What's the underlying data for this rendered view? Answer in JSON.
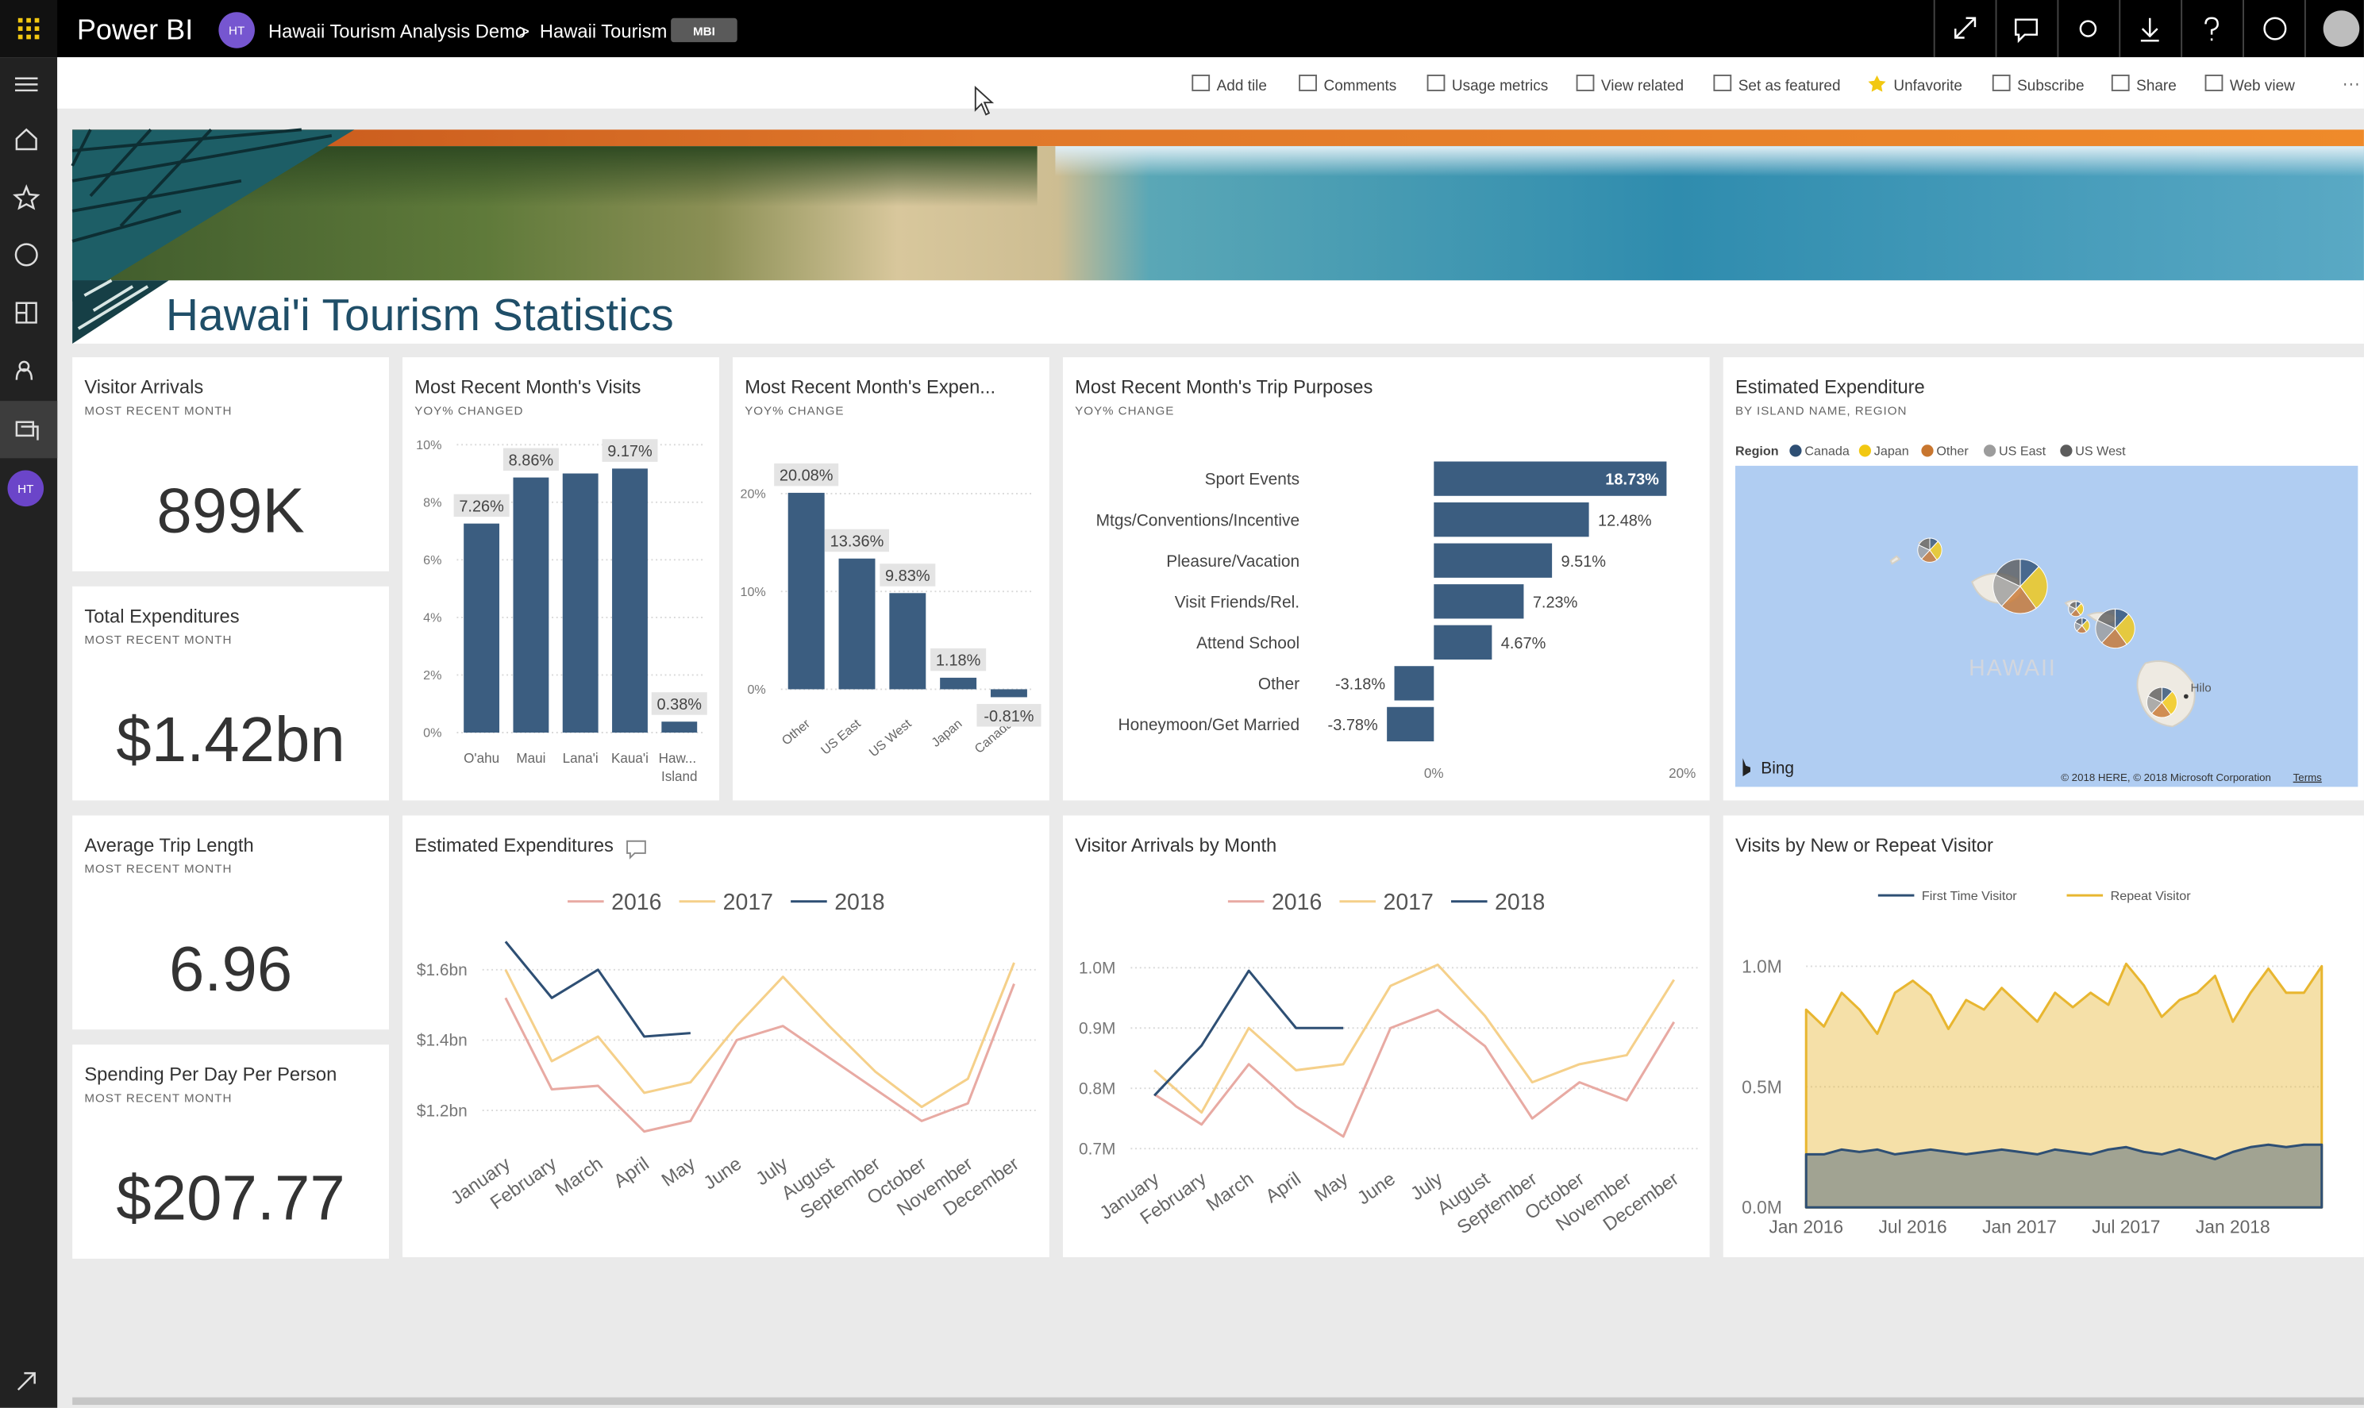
{
  "header": {
    "app": "Power BI",
    "avatar": "HT",
    "workspace": "Hawaii Tourism Analysis Demo",
    "separator": ">",
    "dashboard": "Hawaii Tourism",
    "badge": "MBI"
  },
  "toolbar": [
    "Add tile",
    "Comments",
    "Usage metrics",
    "View related",
    "Set as featured",
    "Unfavorite",
    "Subscribe",
    "Share",
    "Web view"
  ],
  "sidebar": {
    "avatar": "HT"
  },
  "banner": {
    "title": "Hawai'i Tourism Statistics"
  },
  "cards": [
    {
      "title": "Visitor Arrivals",
      "subtitle": "MOST RECENT MONTH",
      "value": "899K"
    },
    {
      "title": "Total Expenditures",
      "subtitle": "MOST RECENT MONTH",
      "value": "$1.42bn"
    },
    {
      "title": "Average Trip Length",
      "subtitle": "MOST RECENT MONTH",
      "value": "6.96"
    },
    {
      "title": "Spending Per Day Per Person",
      "subtitle": "MOST RECENT MONTH",
      "value": "$207.77"
    }
  ],
  "charts": [
    {
      "type": "bar",
      "title": "Most Recent Month's Visits",
      "subtitle": "YOY% CHANGED",
      "categories": [
        "O'ahu",
        "Maui",
        "Lana'i",
        "Kaua'i",
        "Haw... Island"
      ],
      "values": [
        7.26,
        8.86,
        9.0,
        9.17,
        0.38
      ],
      "value_labels": [
        "7.26%",
        "8.86%",
        null,
        "9.17%",
        "0.38%"
      ],
      "color": "#3b5d80",
      "ylim": [
        0,
        10
      ],
      "yticks": [
        {
          "value": 0,
          "label": "0%"
        },
        {
          "value": 2,
          "label": "2%"
        },
        {
          "value": 4,
          "label": "4%"
        },
        {
          "value": 6,
          "label": "6%"
        },
        {
          "value": 8,
          "label": "8%"
        },
        {
          "value": 10,
          "label": "10%"
        }
      ],
      "grid": true
    },
    {
      "type": "bar",
      "title": "Most Recent Month's Expen...",
      "subtitle": "YOY% CHANGE",
      "categories": [
        "Other",
        "US East",
        "US West",
        "Japan",
        "Canada"
      ],
      "values": [
        20.08,
        13.36,
        9.83,
        1.18,
        -0.81
      ],
      "value_labels": [
        "20.08%",
        "13.36%",
        "9.83%",
        "1.18%",
        "-0.81%"
      ],
      "color": "#3b5d80",
      "ylim": [
        -1.5,
        25
      ],
      "yticks": [
        {
          "value": 0,
          "label": "0%"
        },
        {
          "value": 10,
          "label": "10%"
        },
        {
          "value": 20,
          "label": "20%"
        }
      ],
      "grid": true
    },
    {
      "type": "bar",
      "horizontal": true,
      "title": "Most Recent Month's Trip Purposes",
      "subtitle": "YOY% CHANGE",
      "categories": [
        "Sport Events",
        "Mtgs/Conventions/Incentive",
        "Pleasure/Vacation",
        "Visit Friends/Rel.",
        "Attend School",
        "Other",
        "Honeymoon/Get Married"
      ],
      "values": [
        18.73,
        12.48,
        9.51,
        7.23,
        4.67,
        -3.18,
        -3.78
      ],
      "value_labels": [
        "18.73%",
        "12.48%",
        "9.51%",
        "7.23%",
        "4.67%",
        "-3.18%",
        "-3.78%"
      ],
      "color": "#3b5d80",
      "xlim": [
        -4.5,
        20.5
      ],
      "xticks": [
        {
          "value": 0,
          "label": "0%"
        },
        {
          "value": 20,
          "label": "20%"
        }
      ],
      "grid": false
    },
    {
      "type": "line",
      "title": "Estimated Expenditures",
      "categories": [
        "January",
        "February",
        "March",
        "April",
        "May",
        "June",
        "July",
        "August",
        "September",
        "October",
        "November",
        "December"
      ],
      "series": [
        {
          "name": "2016",
          "color": "#e8aaa3",
          "values": [
            1.52,
            1.26,
            1.27,
            1.14,
            1.17,
            1.4,
            1.44,
            1.35,
            1.26,
            1.17,
            1.22,
            1.56
          ]
        },
        {
          "name": "2017",
          "color": "#f5d08a",
          "values": [
            1.6,
            1.34,
            1.41,
            1.25,
            1.28,
            1.44,
            1.58,
            1.44,
            1.31,
            1.21,
            1.29,
            1.62
          ]
        },
        {
          "name": "2018",
          "color": "#2e4f74",
          "values": [
            1.68,
            1.52,
            1.6,
            1.41,
            1.42,
            null,
            null,
            null,
            null,
            null,
            null,
            null
          ]
        }
      ],
      "ylim": [
        1.1,
        1.7
      ],
      "yticks": [
        {
          "value": 1.2,
          "label": "$1.2bn"
        },
        {
          "value": 1.4,
          "label": "$1.4bn"
        },
        {
          "value": 1.6,
          "label": "$1.6bn"
        }
      ],
      "grid": true
    },
    {
      "type": "line",
      "title": "Visitor Arrivals by Month",
      "categories": [
        "January",
        "February",
        "March",
        "April",
        "May",
        "June",
        "July",
        "August",
        "September",
        "October",
        "November",
        "December"
      ],
      "series": [
        {
          "name": "2016",
          "color": "#e8aaa3",
          "values": [
            0.79,
            0.74,
            0.84,
            0.77,
            0.72,
            0.9,
            0.93,
            0.87,
            0.75,
            0.81,
            0.78,
            0.91
          ]
        },
        {
          "name": "2017",
          "color": "#f5d08a",
          "values": [
            0.83,
            0.76,
            0.9,
            0.83,
            0.84,
            0.97,
            1.005,
            0.92,
            0.81,
            0.84,
            0.855,
            0.98
          ]
        },
        {
          "name": "2018",
          "color": "#2e4f74",
          "values": [
            0.788,
            0.871,
            0.995,
            0.9,
            0.9,
            null,
            null,
            null,
            null,
            null,
            null,
            null
          ]
        }
      ],
      "ylim": [
        0.68,
        1.03
      ],
      "yticks": [
        {
          "value": 0.7,
          "label": "0.7M"
        },
        {
          "value": 0.8,
          "label": "0.8M"
        },
        {
          "value": 0.9,
          "label": "0.9M"
        },
        {
          "value": 1.0,
          "label": "1.0M"
        }
      ],
      "grid": true
    },
    {
      "type": "area",
      "title": "Visits by New or Repeat Visitor",
      "x": [
        "2016-01",
        "2016-02",
        "2016-03",
        "2016-04",
        "2016-05",
        "2016-06",
        "2016-07",
        "2016-08",
        "2016-09",
        "2016-10",
        "2016-11",
        "2016-12",
        "2017-01",
        "2017-02",
        "2017-03",
        "2017-04",
        "2017-05",
        "2017-06",
        "2017-07",
        "2017-08",
        "2017-09",
        "2017-10",
        "2017-11",
        "2017-12",
        "2018-01",
        "2018-02",
        "2018-03",
        "2018-04",
        "2018-05",
        "2018-06"
      ],
      "series": [
        {
          "name": "First Time Visitor",
          "color": "#2e4f74",
          "values": [
            0.22,
            0.22,
            0.24,
            0.23,
            0.24,
            0.22,
            0.23,
            0.24,
            0.23,
            0.22,
            0.23,
            0.24,
            0.23,
            0.22,
            0.24,
            0.23,
            0.22,
            0.24,
            0.25,
            0.23,
            0.22,
            0.24,
            0.22,
            0.2,
            0.23,
            0.25,
            0.26,
            0.25,
            0.26,
            0.26
          ]
        },
        {
          "name": "Repeat Visitor",
          "color": "#e8b630",
          "values": [
            0.82,
            0.75,
            0.89,
            0.82,
            0.72,
            0.89,
            0.94,
            0.88,
            0.74,
            0.86,
            0.82,
            0.91,
            0.84,
            0.77,
            0.89,
            0.83,
            0.89,
            0.84,
            1.01,
            0.92,
            0.79,
            0.86,
            0.89,
            0.96,
            0.77,
            0.89,
            0.99,
            0.89,
            0.89,
            1.0
          ]
        }
      ],
      "ylim": [
        0,
        1.1
      ],
      "yticks": [
        {
          "value": 0,
          "label": "0.0M"
        },
        {
          "value": 0.5,
          "label": "0.5M"
        },
        {
          "value": 1.0,
          "label": "1.0M"
        }
      ],
      "xticks": [
        {
          "value": "2016-01",
          "label": "Jan 2016"
        },
        {
          "value": "2016-07",
          "label": "Jul 2016"
        },
        {
          "value": "2017-01",
          "label": "Jan 2017"
        },
        {
          "value": "2017-07",
          "label": "Jul 2017"
        },
        {
          "value": "2018-01",
          "label": "Jan 2018"
        }
      ],
      "grid": true
    }
  ],
  "map": {
    "title": "Estimated Expenditure",
    "subtitle": "BY ISLAND NAME, REGION",
    "legend_title": "Region",
    "legend": [
      {
        "name": "Canada",
        "color": "#2e4f74"
      },
      {
        "name": "Japan",
        "color": "#f2c811"
      },
      {
        "name": "Other",
        "color": "#c8762f"
      },
      {
        "name": "US East",
        "color": "#9c9c9c"
      },
      {
        "name": "US West",
        "color": "#5c5c5c"
      }
    ],
    "region_label": "HAWAII",
    "city": "Hilo",
    "provider": "Bing",
    "copyright": "© 2018 HERE, © 2018 Microsoft Corporation",
    "terms": "Terms"
  }
}
